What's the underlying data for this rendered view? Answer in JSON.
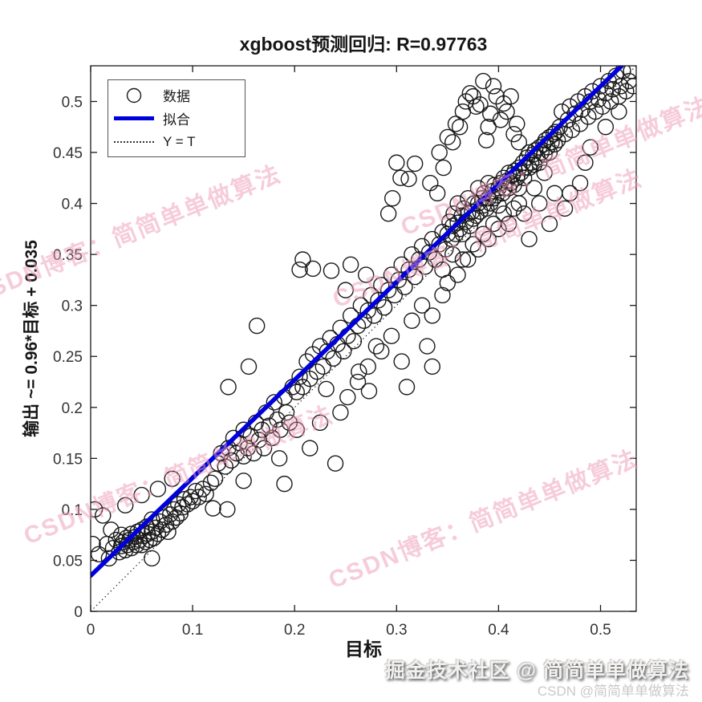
{
  "chart_data": {
    "type": "scatter",
    "title": "xgboost预测回归: R=0.97763",
    "xlabel": "目标",
    "ylabel": "输出 ~= 0.96*目标 + 0.035",
    "xlim": [
      0,
      0.535
    ],
    "ylim": [
      0,
      0.535
    ],
    "xticks": [
      0,
      0.1,
      0.2,
      0.3,
      0.4,
      0.5
    ],
    "yticks": [
      0,
      0.05,
      0.1,
      0.15,
      0.2,
      0.25,
      0.3,
      0.35,
      0.4,
      0.45,
      0.5
    ],
    "grid": false,
    "legend_position": "top-left",
    "legend": [
      {
        "label": "数据",
        "type": "marker",
        "color": "#1a1a1a"
      },
      {
        "label": "拟合",
        "type": "line",
        "color": "#0000dd"
      },
      {
        "label": "Y = T",
        "type": "dotted-line",
        "color": "#333333"
      }
    ],
    "fit_line": {
      "slope": 0.96,
      "intercept": 0.035,
      "color": "#0000dd",
      "equation": "Y = 0.96*T + 0.035"
    },
    "identity_line": {
      "label": "Y = T",
      "from": [
        0,
        0
      ],
      "to": [
        0.535,
        0.535
      ]
    },
    "r_value": 0.97763,
    "marker": {
      "shape": "circle",
      "color": "#1a1a1a",
      "fill": "none"
    },
    "points": [
      [
        0.002,
        0.066
      ],
      [
        0.004,
        0.1
      ],
      [
        0.008,
        0.056
      ],
      [
        0.012,
        0.094
      ],
      [
        0.016,
        0.066
      ],
      [
        0.018,
        0.052
      ],
      [
        0.02,
        0.08
      ],
      [
        0.022,
        0.062
      ],
      [
        0.025,
        0.07
      ],
      [
        0.028,
        0.058
      ],
      [
        0.03,
        0.064
      ],
      [
        0.03,
        0.075
      ],
      [
        0.032,
        0.068
      ],
      [
        0.034,
        0.06
      ],
      [
        0.034,
        0.104
      ],
      [
        0.035,
        0.072
      ],
      [
        0.036,
        0.065
      ],
      [
        0.038,
        0.07
      ],
      [
        0.04,
        0.062
      ],
      [
        0.04,
        0.076
      ],
      [
        0.042,
        0.068
      ],
      [
        0.044,
        0.073
      ],
      [
        0.045,
        0.065
      ],
      [
        0.046,
        0.078
      ],
      [
        0.048,
        0.07
      ],
      [
        0.05,
        0.065
      ],
      [
        0.05,
        0.08
      ],
      [
        0.05,
        0.114
      ],
      [
        0.052,
        0.074
      ],
      [
        0.054,
        0.068
      ],
      [
        0.055,
        0.083
      ],
      [
        0.056,
        0.076
      ],
      [
        0.058,
        0.07
      ],
      [
        0.06,
        0.052
      ],
      [
        0.06,
        0.078
      ],
      [
        0.06,
        0.09
      ],
      [
        0.062,
        0.072
      ],
      [
        0.064,
        0.082
      ],
      [
        0.066,
        0.076
      ],
      [
        0.066,
        0.12
      ],
      [
        0.068,
        0.088
      ],
      [
        0.07,
        0.08
      ],
      [
        0.072,
        0.092
      ],
      [
        0.074,
        0.085
      ],
      [
        0.076,
        0.078
      ],
      [
        0.078,
        0.095
      ],
      [
        0.08,
        0.088
      ],
      [
        0.08,
        0.13
      ],
      [
        0.082,
        0.1
      ],
      [
        0.084,
        0.092
      ],
      [
        0.086,
        0.105
      ],
      [
        0.088,
        0.096
      ],
      [
        0.09,
        0.102
      ],
      [
        0.092,
        0.11
      ],
      [
        0.095,
        0.105
      ],
      [
        0.098,
        0.112
      ],
      [
        0.1,
        0.108
      ],
      [
        0.103,
        0.118
      ],
      [
        0.106,
        0.112
      ],
      [
        0.11,
        0.12
      ],
      [
        0.113,
        0.115
      ],
      [
        0.118,
        0.126
      ],
      [
        0.12,
        0.101
      ],
      [
        0.134,
        0.1
      ],
      [
        0.122,
        0.13
      ],
      [
        0.125,
        0.145
      ],
      [
        0.128,
        0.155
      ],
      [
        0.132,
        0.142
      ],
      [
        0.135,
        0.16
      ],
      [
        0.135,
        0.22
      ],
      [
        0.138,
        0.148
      ],
      [
        0.14,
        0.17
      ],
      [
        0.143,
        0.155
      ],
      [
        0.146,
        0.165
      ],
      [
        0.15,
        0.128
      ],
      [
        0.15,
        0.152
      ],
      [
        0.15,
        0.178
      ],
      [
        0.154,
        0.16
      ],
      [
        0.155,
        0.24
      ],
      [
        0.157,
        0.172
      ],
      [
        0.16,
        0.155
      ],
      [
        0.162,
        0.185
      ],
      [
        0.163,
        0.28
      ],
      [
        0.165,
        0.168
      ],
      [
        0.168,
        0.178
      ],
      [
        0.17,
        0.16
      ],
      [
        0.172,
        0.195
      ],
      [
        0.175,
        0.182
      ],
      [
        0.178,
        0.17
      ],
      [
        0.18,
        0.205
      ],
      [
        0.183,
        0.188
      ],
      [
        0.185,
        0.15
      ],
      [
        0.186,
        0.178
      ],
      [
        0.19,
        0.125
      ],
      [
        0.19,
        0.21
      ],
      [
        0.192,
        0.195
      ],
      [
        0.195,
        0.185
      ],
      [
        0.198,
        0.22
      ],
      [
        0.205,
        0.335
      ],
      [
        0.208,
        0.345
      ],
      [
        0.202,
        0.178
      ],
      [
        0.202,
        0.215
      ],
      [
        0.205,
        0.23
      ],
      [
        0.208,
        0.22
      ],
      [
        0.212,
        0.245
      ],
      [
        0.215,
        0.16
      ],
      [
        0.215,
        0.228
      ],
      [
        0.218,
        0.252
      ],
      [
        0.218,
        0.336
      ],
      [
        0.222,
        0.235
      ],
      [
        0.225,
        0.185
      ],
      [
        0.225,
        0.26
      ],
      [
        0.228,
        0.24
      ],
      [
        0.231,
        0.218
      ],
      [
        0.232,
        0.255
      ],
      [
        0.235,
        0.268
      ],
      [
        0.236,
        0.334
      ],
      [
        0.238,
        0.248
      ],
      [
        0.24,
        0.145
      ],
      [
        0.242,
        0.262
      ],
      [
        0.245,
        0.195
      ],
      [
        0.245,
        0.278
      ],
      [
        0.248,
        0.255
      ],
      [
        0.25,
        0.315
      ],
      [
        0.252,
        0.21
      ],
      [
        0.252,
        0.27
      ],
      [
        0.255,
        0.29
      ],
      [
        0.255,
        0.34
      ],
      [
        0.258,
        0.265
      ],
      [
        0.262,
        0.225
      ],
      [
        0.262,
        0.28
      ],
      [
        0.263,
        0.235
      ],
      [
        0.265,
        0.3
      ],
      [
        0.268,
        0.285
      ],
      [
        0.27,
        0.33
      ],
      [
        0.272,
        0.24
      ],
      [
        0.272,
        0.295
      ],
      [
        0.273,
        0.216
      ],
      [
        0.275,
        0.31
      ],
      [
        0.278,
        0.29
      ],
      [
        0.28,
        0.26
      ],
      [
        0.282,
        0.305
      ],
      [
        0.285,
        0.255
      ],
      [
        0.285,
        0.32
      ],
      [
        0.288,
        0.298
      ],
      [
        0.292,
        0.315
      ],
      [
        0.292,
        0.39
      ],
      [
        0.295,
        0.27
      ],
      [
        0.295,
        0.33
      ],
      [
        0.296,
        0.405
      ],
      [
        0.298,
        0.31
      ],
      [
        0.3,
        0.44
      ],
      [
        0.302,
        0.325
      ],
      [
        0.304,
        0.425
      ],
      [
        0.305,
        0.245
      ],
      [
        0.305,
        0.34
      ],
      [
        0.308,
        0.318
      ],
      [
        0.31,
        0.22
      ],
      [
        0.312,
        0.335
      ],
      [
        0.312,
        0.424
      ],
      [
        0.315,
        0.285
      ],
      [
        0.315,
        0.35
      ],
      [
        0.318,
        0.328
      ],
      [
        0.318,
        0.439
      ],
      [
        0.322,
        0.345
      ],
      [
        0.325,
        0.3
      ],
      [
        0.325,
        0.358
      ],
      [
        0.328,
        0.338
      ],
      [
        0.33,
        0.26
      ],
      [
        0.332,
        0.352
      ],
      [
        0.335,
        0.24
      ],
      [
        0.335,
        0.29
      ],
      [
        0.335,
        0.365
      ],
      [
        0.338,
        0.345
      ],
      [
        0.34,
        0.41
      ],
      [
        0.342,
        0.36
      ],
      [
        0.345,
        0.31
      ],
      [
        0.345,
        0.372
      ],
      [
        0.333,
        0.42
      ],
      [
        0.346,
        0.435
      ],
      [
        0.348,
        0.355
      ],
      [
        0.35,
        0.37
      ],
      [
        0.352,
        0.382
      ],
      [
        0.354,
        0.365
      ],
      [
        0.355,
        0.378
      ],
      [
        0.356,
        0.39
      ],
      [
        0.358,
        0.37
      ],
      [
        0.36,
        0.381
      ],
      [
        0.36,
        0.4
      ],
      [
        0.362,
        0.375
      ],
      [
        0.364,
        0.388
      ],
      [
        0.365,
        0.37
      ],
      [
        0.366,
        0.395
      ],
      [
        0.368,
        0.382
      ],
      [
        0.37,
        0.39
      ],
      [
        0.37,
        0.405
      ],
      [
        0.372,
        0.378
      ],
      [
        0.374,
        0.392
      ],
      [
        0.375,
        0.385
      ],
      [
        0.376,
        0.4
      ],
      [
        0.378,
        0.388
      ],
      [
        0.38,
        0.4
      ],
      [
        0.38,
        0.415
      ],
      [
        0.382,
        0.392
      ],
      [
        0.384,
        0.405
      ],
      [
        0.385,
        0.398
      ],
      [
        0.386,
        0.41
      ],
      [
        0.388,
        0.395
      ],
      [
        0.39,
        0.405
      ],
      [
        0.39,
        0.42
      ],
      [
        0.392,
        0.4
      ],
      [
        0.394,
        0.412
      ],
      [
        0.395,
        0.405
      ],
      [
        0.396,
        0.418
      ],
      [
        0.398,
        0.408
      ],
      [
        0.4,
        0.415
      ],
      [
        0.4,
        0.398
      ],
      [
        0.402,
        0.42
      ],
      [
        0.404,
        0.41
      ],
      [
        0.405,
        0.425
      ],
      [
        0.406,
        0.415
      ],
      [
        0.408,
        0.422
      ],
      [
        0.41,
        0.415
      ],
      [
        0.41,
        0.43
      ],
      [
        0.412,
        0.42
      ],
      [
        0.414,
        0.428
      ],
      [
        0.415,
        0.418
      ],
      [
        0.416,
        0.432
      ],
      [
        0.418,
        0.425
      ],
      [
        0.42,
        0.435
      ],
      [
        0.42,
        0.415
      ],
      [
        0.422,
        0.43
      ],
      [
        0.424,
        0.44
      ],
      [
        0.425,
        0.425
      ],
      [
        0.426,
        0.435
      ],
      [
        0.428,
        0.445
      ],
      [
        0.43,
        0.435
      ],
      [
        0.43,
        0.45
      ],
      [
        0.432,
        0.44
      ],
      [
        0.434,
        0.448
      ],
      [
        0.435,
        0.438
      ],
      [
        0.436,
        0.452
      ],
      [
        0.438,
        0.445
      ],
      [
        0.44,
        0.455
      ],
      [
        0.44,
        0.44
      ],
      [
        0.442,
        0.45
      ],
      [
        0.444,
        0.458
      ],
      [
        0.445,
        0.448
      ],
      [
        0.446,
        0.462
      ],
      [
        0.448,
        0.455
      ],
      [
        0.45,
        0.465
      ],
      [
        0.45,
        0.45
      ],
      [
        0.452,
        0.46
      ],
      [
        0.454,
        0.468
      ],
      [
        0.455,
        0.458
      ],
      [
        0.456,
        0.47
      ],
      [
        0.458,
        0.462
      ],
      [
        0.345,
        0.335
      ],
      [
        0.35,
        0.322
      ],
      [
        0.355,
        0.35
      ],
      [
        0.36,
        0.33
      ],
      [
        0.365,
        0.345
      ],
      [
        0.37,
        0.345
      ],
      [
        0.375,
        0.36
      ],
      [
        0.38,
        0.355
      ],
      [
        0.385,
        0.37
      ],
      [
        0.39,
        0.365
      ],
      [
        0.395,
        0.38
      ],
      [
        0.4,
        0.375
      ],
      [
        0.405,
        0.39
      ],
      [
        0.41,
        0.38
      ],
      [
        0.415,
        0.395
      ],
      [
        0.42,
        0.4
      ],
      [
        0.425,
        0.39
      ],
      [
        0.43,
        0.365
      ],
      [
        0.435,
        0.415
      ],
      [
        0.44,
        0.4
      ],
      [
        0.445,
        0.43
      ],
      [
        0.45,
        0.38
      ],
      [
        0.455,
        0.41
      ],
      [
        0.465,
        0.395
      ],
      [
        0.47,
        0.41
      ],
      [
        0.48,
        0.42
      ],
      [
        0.485,
        0.44
      ],
      [
        0.342,
        0.45
      ],
      [
        0.35,
        0.465
      ],
      [
        0.355,
        0.46
      ],
      [
        0.358,
        0.478
      ],
      [
        0.362,
        0.475
      ],
      [
        0.365,
        0.49
      ],
      [
        0.368,
        0.5
      ],
      [
        0.372,
        0.508
      ],
      [
        0.375,
        0.505
      ],
      [
        0.378,
        0.495
      ],
      [
        0.382,
        0.497
      ],
      [
        0.385,
        0.52
      ],
      [
        0.388,
        0.462
      ],
      [
        0.39,
        0.475
      ],
      [
        0.392,
        0.488
      ],
      [
        0.395,
        0.515
      ],
      [
        0.398,
        0.505
      ],
      [
        0.402,
        0.482
      ],
      [
        0.405,
        0.498
      ],
      [
        0.408,
        0.49
      ],
      [
        0.412,
        0.505
      ],
      [
        0.415,
        0.468
      ],
      [
        0.418,
        0.478
      ],
      [
        0.42,
        0.46
      ],
      [
        0.46,
        0.475
      ],
      [
        0.462,
        0.49
      ],
      [
        0.465,
        0.468
      ],
      [
        0.468,
        0.482
      ],
      [
        0.47,
        0.495
      ],
      [
        0.472,
        0.472
      ],
      [
        0.475,
        0.488
      ],
      [
        0.478,
        0.5
      ],
      [
        0.48,
        0.478
      ],
      [
        0.482,
        0.492
      ],
      [
        0.485,
        0.505
      ],
      [
        0.488,
        0.485
      ],
      [
        0.49,
        0.5
      ],
      [
        0.49,
        0.455
      ],
      [
        0.492,
        0.51
      ],
      [
        0.495,
        0.49
      ],
      [
        0.498,
        0.502
      ],
      [
        0.5,
        0.515
      ],
      [
        0.502,
        0.495
      ],
      [
        0.505,
        0.508
      ],
      [
        0.508,
        0.52
      ],
      [
        0.51,
        0.5
      ],
      [
        0.512,
        0.512
      ],
      [
        0.515,
        0.525
      ],
      [
        0.518,
        0.505
      ],
      [
        0.52,
        0.515
      ],
      [
        0.522,
        0.53
      ],
      [
        0.525,
        0.51
      ],
      [
        0.528,
        0.52
      ],
      [
        0.53,
        0.53
      ],
      [
        0.532,
        0.515
      ],
      [
        0.518,
        0.49
      ],
      [
        0.505,
        0.475
      ]
    ]
  },
  "watermarks": {
    "diagonal_text": "CSDN博客：简简单单做算法",
    "diagonal_color": "#ee9ab8",
    "footer_main": "掘金技术社区 @ 简简单单做算法",
    "footer_sub": "CSDN @简简单单做算法"
  }
}
